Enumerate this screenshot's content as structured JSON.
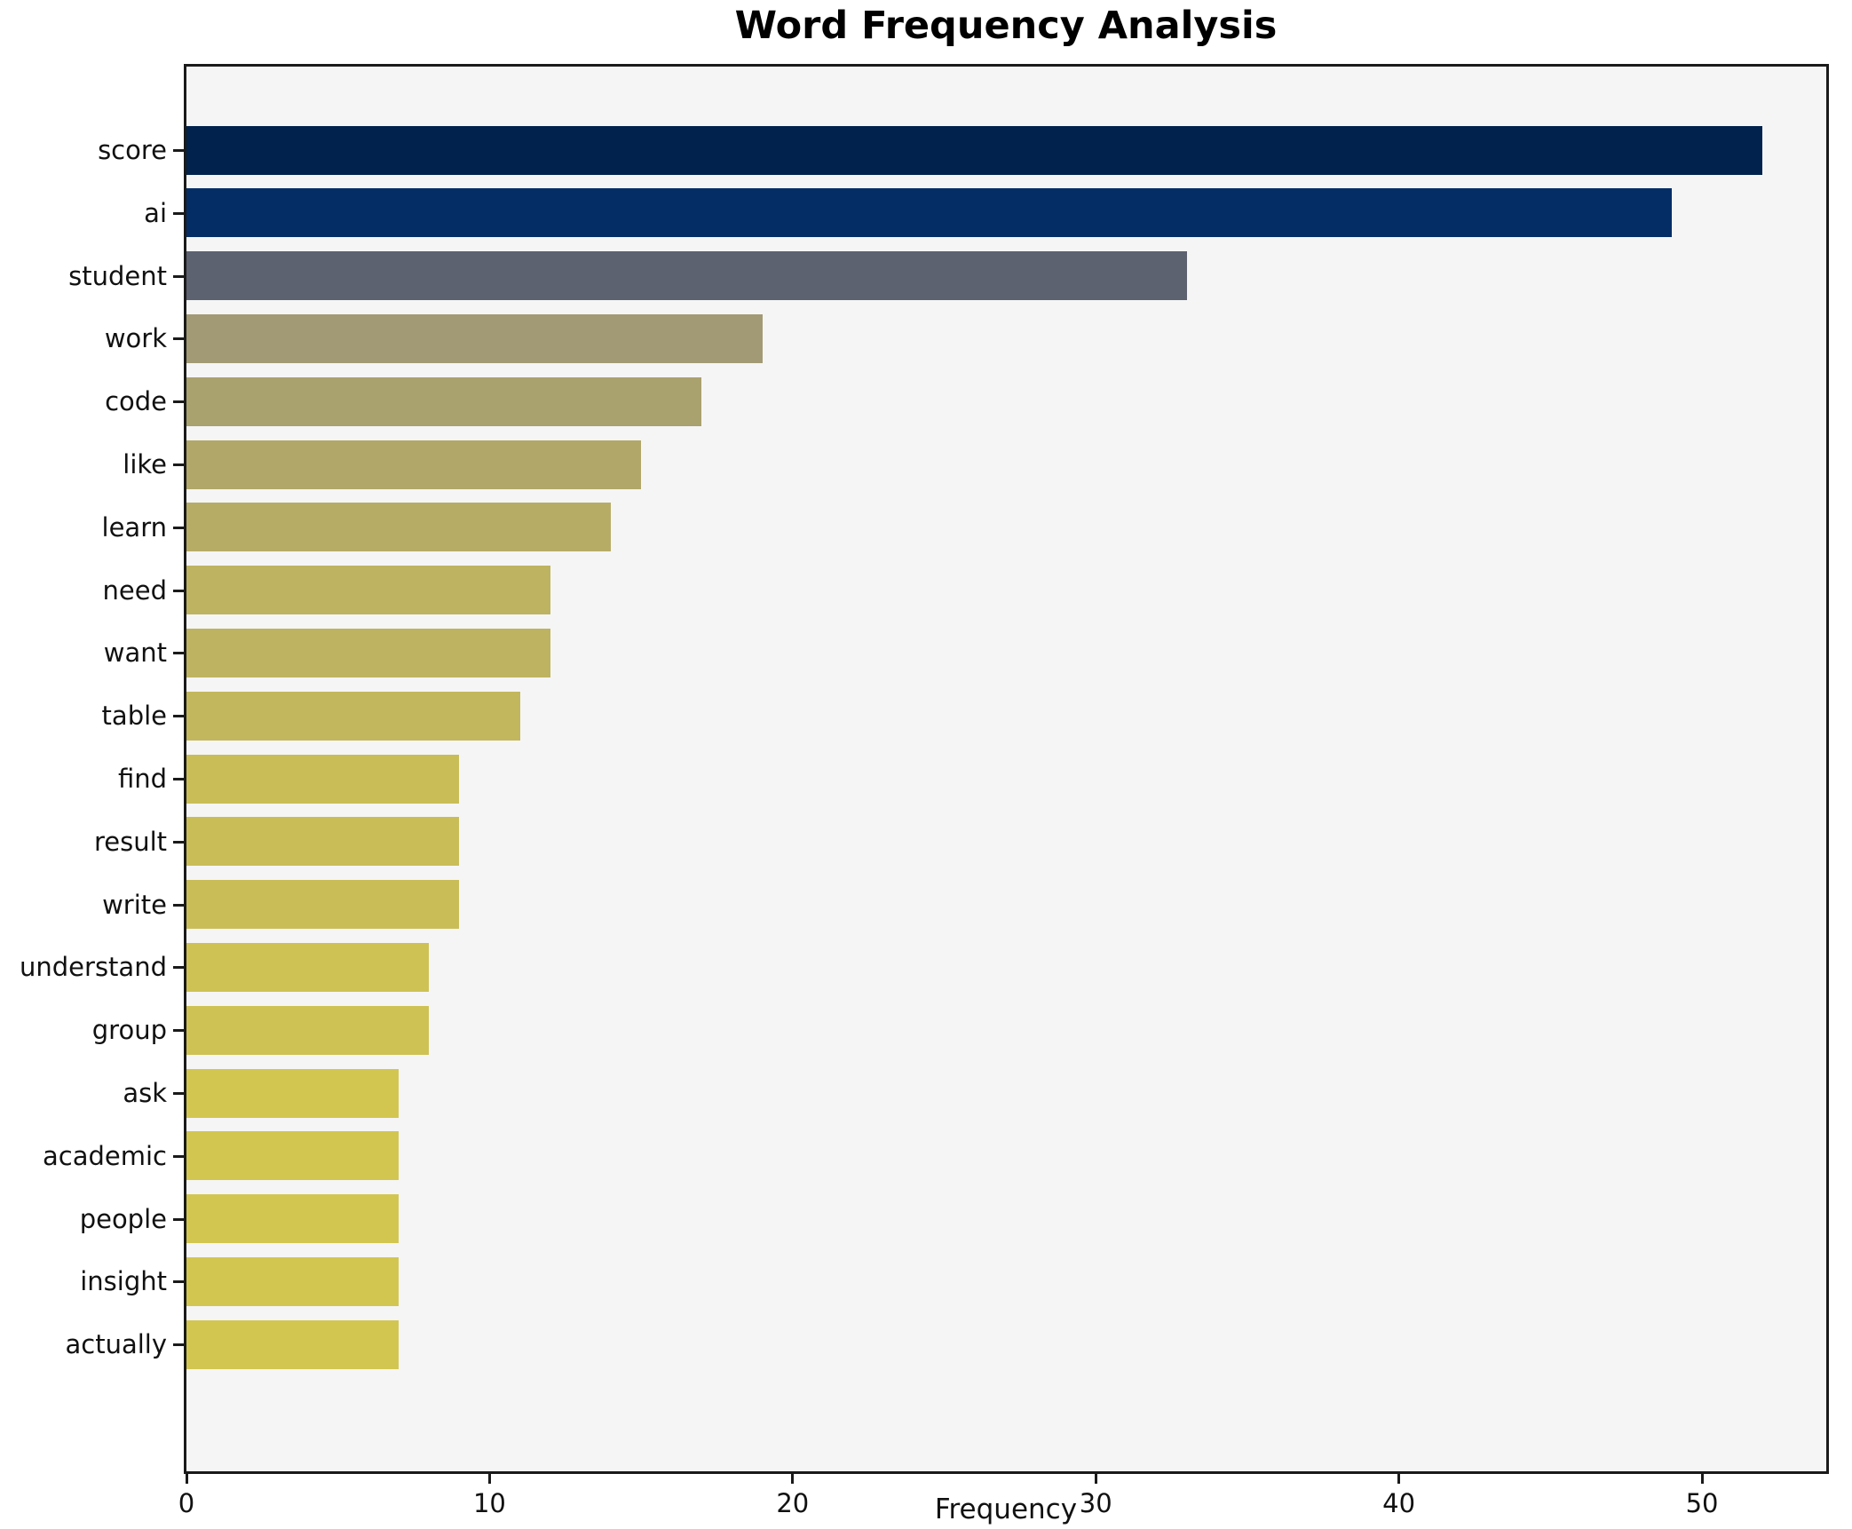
{
  "title": "Word Frequency Analysis",
  "chart_data": {
    "type": "bar",
    "orientation": "horizontal",
    "title": "Word Frequency Analysis",
    "xlabel": "Frequency",
    "ylabel": "",
    "categories": [
      "score",
      "ai",
      "student",
      "work",
      "code",
      "like",
      "learn",
      "need",
      "want",
      "table",
      "find",
      "result",
      "write",
      "understand",
      "group",
      "ask",
      "academic",
      "people",
      "insight",
      "actually"
    ],
    "values": [
      52,
      49,
      33,
      19,
      17,
      15,
      14,
      12,
      12,
      11,
      9,
      9,
      9,
      8,
      8,
      7,
      7,
      7,
      7,
      7
    ],
    "bar_colors": [
      "#00224d",
      "#042d66",
      "#5d6271",
      "#a29a74",
      "#a9a16e",
      "#b1a769",
      "#b6ac66",
      "#beb361",
      "#beb361",
      "#c2b75d",
      "#c9bd58",
      "#c9bd58",
      "#c9bd58",
      "#cec254",
      "#cec254",
      "#d2c651",
      "#d2c651",
      "#d2c651",
      "#d2c651",
      "#d2c651"
    ],
    "xlim": [
      0,
      54.1
    ],
    "xticks": [
      0,
      10,
      20,
      30,
      40,
      50
    ],
    "grid": false,
    "legend": null,
    "colors": {
      "plot_background": "#f5f5f6",
      "figure_background": "#ffffff",
      "spine": "#1a1a1a",
      "text": "#111111"
    }
  }
}
